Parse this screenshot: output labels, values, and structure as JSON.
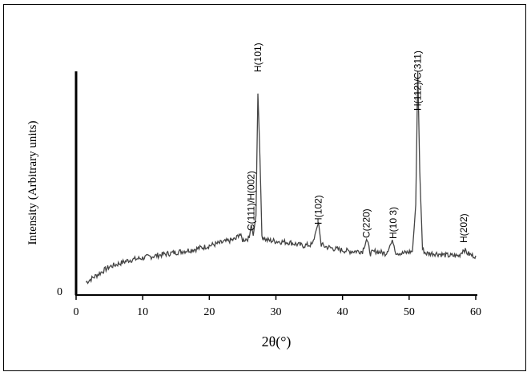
{
  "chart_data": {
    "type": "line",
    "xlabel": "2θ(°)",
    "ylabel": "Intensity (Arbitrary units)",
    "xlim": [
      0,
      60
    ],
    "ylim": [
      0,
      1
    ],
    "x_ticks": [
      "0",
      "10",
      "20",
      "30",
      "40",
      "50",
      "60"
    ],
    "y_ticks": [
      "0"
    ],
    "grid": false,
    "series": [
      {
        "x": [
          1.5,
          2,
          3,
          4,
          5,
          6,
          8,
          10,
          12,
          14,
          16,
          18,
          20,
          22,
          24,
          24.5,
          25,
          26,
          26.3,
          26.6,
          27,
          27.3,
          27.6,
          27.9,
          28.2,
          28.6,
          30,
          32,
          34,
          35.5,
          36.0,
          36.4,
          36.8,
          37.5,
          39,
          41,
          43,
          43.6,
          44.2,
          45,
          46.5,
          47.2,
          47.6,
          48.0,
          49,
          50.5,
          51.0,
          51.3,
          51.6,
          52.0,
          52.5,
          54,
          56,
          57.5,
          58.2,
          58.8,
          59.5,
          60
        ],
        "y": [
          0.05,
          0.06,
          0.08,
          0.1,
          0.12,
          0.13,
          0.15,
          0.16,
          0.17,
          0.18,
          0.19,
          0.2,
          0.215,
          0.23,
          0.245,
          0.27,
          0.24,
          0.25,
          0.31,
          0.26,
          0.35,
          0.9,
          0.62,
          0.26,
          0.25,
          0.24,
          0.235,
          0.23,
          0.215,
          0.22,
          0.28,
          0.32,
          0.22,
          0.21,
          0.2,
          0.19,
          0.19,
          0.245,
          0.18,
          0.19,
          0.18,
          0.22,
          0.235,
          0.185,
          0.18,
          0.19,
          0.4,
          1.0,
          0.55,
          0.2,
          0.18,
          0.18,
          0.17,
          0.17,
          0.2,
          0.18,
          0.17,
          0.17
        ]
      }
    ],
    "annotations": [
      {
        "text": "C(111)/H(002)",
        "x": 26.3
      },
      {
        "text": "H(101)",
        "x": 27.3
      },
      {
        "text": "H(102)",
        "x": 36.4
      },
      {
        "text": "C(220)",
        "x": 43.6
      },
      {
        "text": "H(10 3)",
        "x": 47.6
      },
      {
        "text": "H(112)/C(311)",
        "x": 51.3
      },
      {
        "text": "H(202)",
        "x": 58.2
      }
    ]
  }
}
